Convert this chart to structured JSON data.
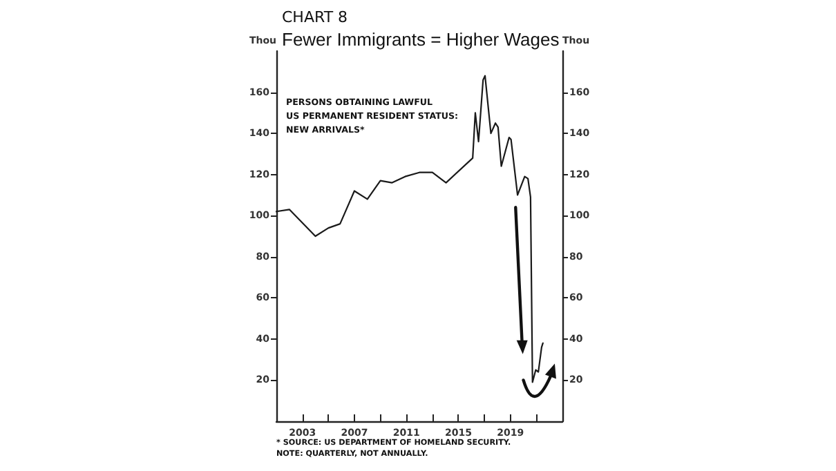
{
  "chart_data": {
    "type": "line",
    "subtitle": "CHART 8",
    "title": "Fewer Immigrants = Higher Wages",
    "ylabel": "Thou",
    "y2label": "Thou",
    "annotations": [
      "PERSONS OBTAINING LAWFUL\nUS PERMANENT RESIDENT STATUS:\nNEW ARRIVALS*",
      "* SOURCE: US DEPARTMENT OF HOMELAND SECURITY.",
      "NOTE: QUARTERLY, NOT ANNUALLY."
    ],
    "x": [
      2001,
      2002,
      2004,
      2005,
      2005.9,
      2007,
      2008,
      2009,
      2009.9,
      2010.9,
      2012,
      2013,
      2014.05,
      2016.1,
      2016.3,
      2016.55,
      2016.9,
      2017.05,
      2017.5,
      2017.85,
      2018.05,
      2018.3,
      2018.9,
      2019.05,
      2019.55,
      2020.1,
      2020.35,
      2020.55,
      2020.7,
      2020.95,
      2021.15,
      2021.4,
      2021.5
    ],
    "series": [
      {
        "color": "#1a1a1a",
        "values": [
          102,
          103,
          90,
          94,
          96,
          112,
          108,
          117,
          116,
          119,
          121,
          121,
          116,
          128,
          150,
          136,
          166,
          168,
          140,
          145,
          143,
          124,
          138,
          137,
          110,
          119,
          118,
          109,
          19,
          25,
          24,
          36,
          38
        ]
      }
    ],
    "xlim": [
      2001,
      2023
    ],
    "xticks": [
      2003,
      {
        "value": 2005,
        "label": null
      },
      2007,
      {
        "value": 2009,
        "label": null
      },
      2011,
      {
        "value": 2013,
        "label": null
      },
      2015,
      {
        "value": 2017,
        "label": null
      },
      2019,
      {
        "value": 2021,
        "label": null
      }
    ],
    "ylim": [
      0,
      180
    ],
    "yticks": [
      20,
      40,
      60,
      80,
      100,
      120,
      140,
      160
    ],
    "y2lim": [
      0,
      180
    ],
    "y2ticks": [
      20,
      40,
      60,
      80,
      100,
      120,
      140,
      160
    ],
    "grid": false,
    "marker": "none",
    "line_style": "solid"
  }
}
